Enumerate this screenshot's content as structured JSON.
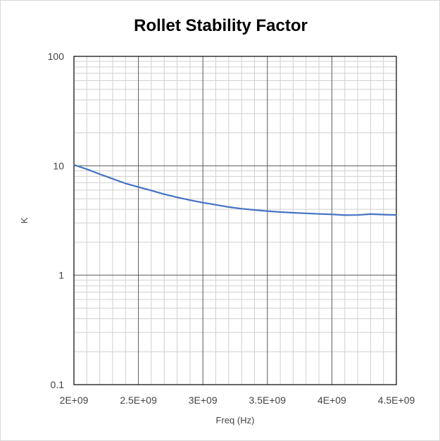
{
  "chart_data": {
    "type": "line",
    "title": "Rollet Stability Factor",
    "xlabel": "Freq (Hz)",
    "ylabel": "K",
    "yscale": "log",
    "xlim": [
      2000000000,
      4500000000
    ],
    "ylim": [
      0.1,
      100
    ],
    "x_ticks": [
      2000000000,
      2500000000,
      3000000000,
      3500000000,
      4000000000,
      4500000000
    ],
    "x_tick_labels": [
      "2E+09",
      "2.5E+09",
      "3E+09",
      "3.5E+09",
      "4E+09",
      "4.5E+09"
    ],
    "y_ticks": [
      0.1,
      1,
      10,
      100
    ],
    "y_tick_labels": [
      "0.1",
      "1",
      "10",
      "100"
    ],
    "grid": true,
    "legend": "none",
    "series": [
      {
        "color": "#4472c4",
        "x": [
          2000000000,
          2100000000,
          2200000000,
          2300000000,
          2400000000,
          2500000000,
          2600000000,
          2700000000,
          2800000000,
          2900000000,
          3000000000,
          3100000000,
          3200000000,
          3300000000,
          3400000000,
          3500000000,
          3600000000,
          3700000000,
          3800000000,
          3900000000,
          4000000000,
          4100000000,
          4200000000,
          4300000000,
          4400000000,
          4500000000
        ],
        "values": [
          10.2,
          9.3,
          8.4,
          7.6,
          6.9,
          6.4,
          5.95,
          5.5,
          5.15,
          4.85,
          4.6,
          4.4,
          4.2,
          4.05,
          3.95,
          3.85,
          3.78,
          3.72,
          3.68,
          3.63,
          3.6,
          3.54,
          3.55,
          3.62,
          3.58,
          3.55
        ]
      }
    ]
  }
}
